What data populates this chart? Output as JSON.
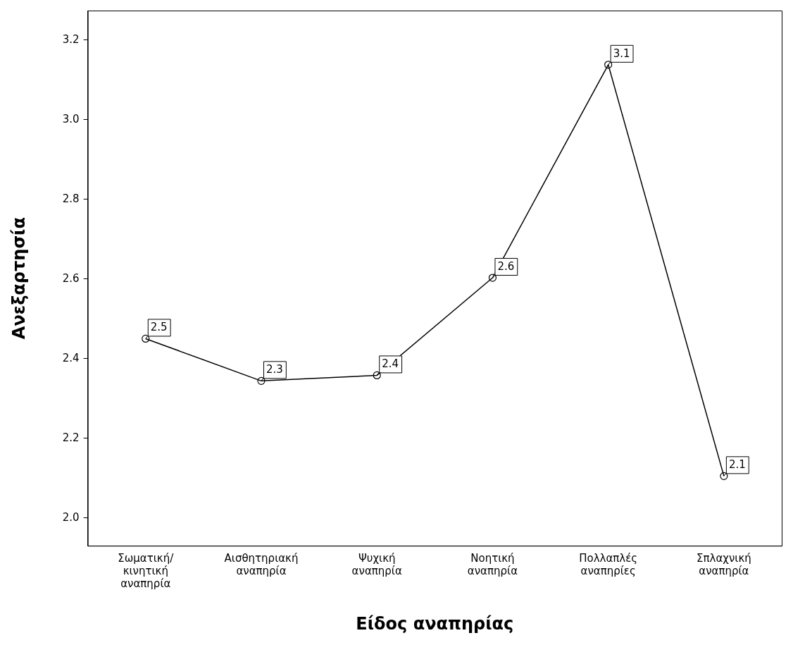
{
  "chart_data": {
    "type": "line",
    "xlabel": "Είδος αναπηρίας",
    "ylabel": "Ανεξαρτησία",
    "categories": [
      "Σωματική/\nκινητική\nαναπηρία",
      "Αισθητηριακή\nαναπηρία",
      "Ψυχική\nαναπηρία",
      "Νοητική\nαναπηρία",
      "Πολλαπλές\nαναπηρίες",
      "Σπλαχνική\nαναπηρία"
    ],
    "values": [
      2.45,
      2.344,
      2.358,
      2.603,
      3.138,
      2.105
    ],
    "value_labels": [
      "2.5",
      "2.3",
      "2.4",
      "2.6",
      "3.1",
      "2.1"
    ],
    "color": "#000000",
    "marker": "circle",
    "line_style": "solid",
    "ylim": [
      1.93,
      3.274
    ],
    "yticks": [
      {
        "value": 2.0,
        "label": "2.0"
      },
      {
        "value": 2.2,
        "label": "2.2"
      },
      {
        "value": 2.4,
        "label": "2.4"
      },
      {
        "value": 2.6,
        "label": "2.6"
      },
      {
        "value": 2.8,
        "label": "2.8"
      },
      {
        "value": 3.0,
        "label": "3.0"
      },
      {
        "value": 3.2,
        "label": "3.2"
      }
    ],
    "grid": false,
    "legend": false
  }
}
